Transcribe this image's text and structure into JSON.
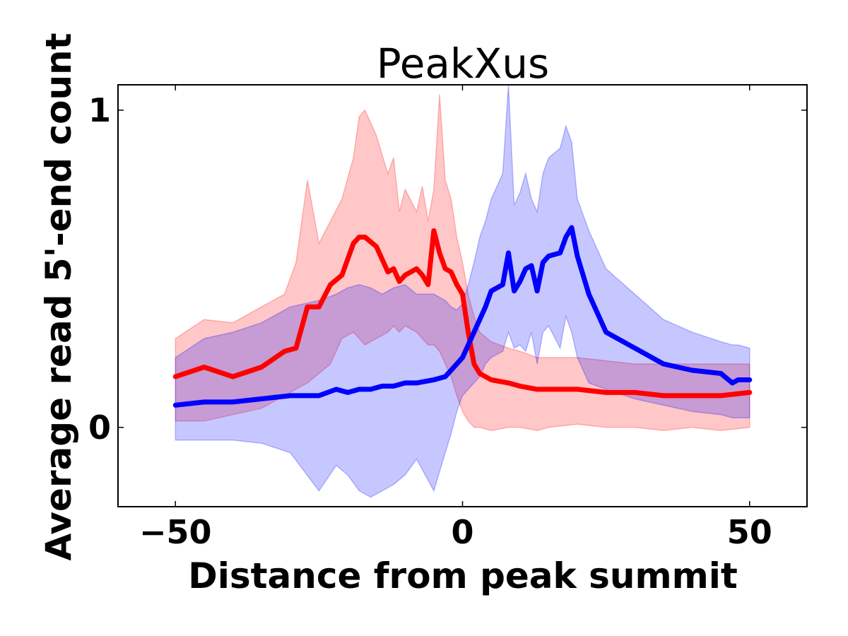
{
  "chart_data": {
    "type": "line",
    "title": "PeakXus",
    "xlabel": "Distance from peak summit",
    "ylabel": "Average read 5'-end count",
    "xlim": [
      -60,
      60
    ],
    "ylim": [
      -0.25,
      1.08
    ],
    "xticks": [
      -50,
      0,
      50
    ],
    "xtick_labels": [
      "−50",
      "0",
      "50"
    ],
    "yticks": [
      0,
      1
    ],
    "ytick_labels": [
      "0",
      "1"
    ],
    "grid": false,
    "legend": "none",
    "series": [
      {
        "color": "#ff0000",
        "band_color": "#ff0000",
        "x": [
          -50,
          -45,
          -40,
          -35,
          -31,
          -29,
          -27,
          -25,
          -23,
          -21,
          -19,
          -18,
          -17,
          -15,
          -13,
          -12,
          -11,
          -10,
          -8,
          -7,
          -6,
          -5,
          -4,
          -3,
          -2,
          -1,
          0,
          1,
          2,
          3,
          5,
          8,
          10,
          13,
          15,
          20,
          25,
          30,
          35,
          40,
          45,
          50
        ],
        "values": [
          0.16,
          0.19,
          0.16,
          0.19,
          0.24,
          0.25,
          0.38,
          0.38,
          0.45,
          0.48,
          0.58,
          0.6,
          0.6,
          0.57,
          0.49,
          0.5,
          0.46,
          0.48,
          0.5,
          0.48,
          0.45,
          0.62,
          0.55,
          0.5,
          0.49,
          0.45,
          0.42,
          0.3,
          0.2,
          0.17,
          0.15,
          0.14,
          0.13,
          0.12,
          0.12,
          0.12,
          0.11,
          0.11,
          0.1,
          0.1,
          0.1,
          0.11
        ],
        "lower": [
          0.02,
          0.02,
          0.04,
          0.06,
          0.1,
          0.12,
          0.14,
          0.17,
          0.2,
          0.28,
          0.3,
          0.28,
          0.26,
          0.28,
          0.3,
          0.32,
          0.3,
          0.32,
          0.3,
          0.28,
          0.26,
          0.26,
          0.24,
          0.2,
          0.16,
          0.1,
          0.05,
          0.02,
          0.0,
          0.0,
          -0.01,
          0.0,
          0.0,
          -0.01,
          0.0,
          0.01,
          0.0,
          0.0,
          -0.01,
          0.0,
          -0.01,
          0.0
        ],
        "upper": [
          0.28,
          0.34,
          0.33,
          0.38,
          0.42,
          0.52,
          0.78,
          0.58,
          0.65,
          0.72,
          0.85,
          0.98,
          1.0,
          0.92,
          0.8,
          0.85,
          0.68,
          0.75,
          0.68,
          0.76,
          0.65,
          0.75,
          1.05,
          0.78,
          0.72,
          0.6,
          0.52,
          0.42,
          0.35,
          0.3,
          0.27,
          0.25,
          0.24,
          0.22,
          0.22,
          0.22,
          0.21,
          0.2,
          0.2,
          0.2,
          0.2,
          0.2
        ]
      },
      {
        "color": "#0000ff",
        "band_color": "#0000ff",
        "x": [
          -50,
          -45,
          -40,
          -35,
          -30,
          -25,
          -22,
          -20,
          -18,
          -16,
          -14,
          -12,
          -10,
          -8,
          -5,
          -3,
          -2,
          -1,
          0,
          1,
          2,
          3,
          4,
          5,
          7,
          8,
          9,
          10,
          11,
          12,
          13,
          14,
          15,
          17,
          18,
          19,
          20,
          22,
          25,
          30,
          35,
          40,
          45,
          47,
          48,
          50
        ],
        "values": [
          0.07,
          0.08,
          0.08,
          0.09,
          0.1,
          0.1,
          0.12,
          0.11,
          0.12,
          0.12,
          0.13,
          0.13,
          0.14,
          0.14,
          0.15,
          0.16,
          0.18,
          0.2,
          0.22,
          0.26,
          0.3,
          0.34,
          0.38,
          0.43,
          0.45,
          0.55,
          0.43,
          0.46,
          0.5,
          0.51,
          0.43,
          0.52,
          0.54,
          0.55,
          0.6,
          0.63,
          0.54,
          0.42,
          0.3,
          0.25,
          0.2,
          0.18,
          0.17,
          0.14,
          0.15,
          0.15
        ],
        "lower": [
          -0.04,
          -0.04,
          -0.04,
          -0.05,
          -0.08,
          -0.2,
          -0.12,
          -0.15,
          -0.2,
          -0.22,
          -0.2,
          -0.18,
          -0.15,
          -0.1,
          -0.2,
          -0.08,
          -0.02,
          0.05,
          0.1,
          0.12,
          0.14,
          0.16,
          0.2,
          0.22,
          0.24,
          0.3,
          0.25,
          0.26,
          0.24,
          0.3,
          0.2,
          0.3,
          0.32,
          0.25,
          0.35,
          0.3,
          0.22,
          0.14,
          0.12,
          0.09,
          0.07,
          0.05,
          0.04,
          0.03,
          0.03,
          0.03
        ],
        "upper": [
          0.22,
          0.28,
          0.3,
          0.33,
          0.38,
          0.4,
          0.42,
          0.44,
          0.45,
          0.44,
          0.42,
          0.44,
          0.45,
          0.42,
          0.42,
          0.4,
          0.38,
          0.37,
          0.39,
          0.45,
          0.52,
          0.6,
          0.65,
          0.72,
          0.8,
          1.08,
          0.7,
          0.74,
          0.8,
          0.72,
          0.68,
          0.8,
          0.85,
          0.88,
          0.95,
          0.9,
          0.72,
          0.62,
          0.5,
          0.42,
          0.34,
          0.3,
          0.27,
          0.26,
          0.26,
          0.25
        ]
      }
    ]
  }
}
